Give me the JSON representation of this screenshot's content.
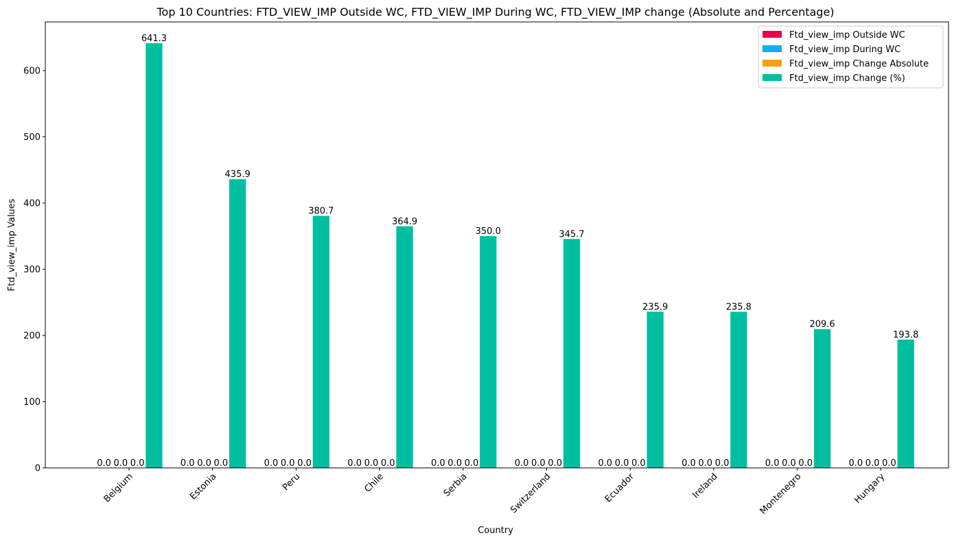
{
  "chart_data": {
    "type": "bar",
    "title": "Top 10 Countries: FTD_VIEW_IMP Outside WC, FTD_VIEW_IMP During WC, FTD_VIEW_IMP change (Absolute and Percentage)",
    "xlabel": "Country",
    "ylabel": "Ftd_view_imp Values",
    "categories": [
      "Belgium",
      "Estonia",
      "Peru",
      "Chile",
      "Serbia",
      "Switzerland",
      "Ecuador",
      "Ireland",
      "Montenegro",
      "Hungary"
    ],
    "series": [
      {
        "name": "Ftd_view_imp Outside WC",
        "color": "#e5004f",
        "values": [
          0.0,
          0.0,
          0.0,
          0.0,
          0.0,
          0.0,
          0.0,
          0.0,
          0.0,
          0.0
        ],
        "labels": [
          "0.0",
          "0.0",
          "0.0",
          "0.0",
          "0.0",
          "0.0",
          "0.0",
          "0.0",
          "0.0",
          "0.0"
        ]
      },
      {
        "name": "Ftd_view_imp During WC",
        "color": "#0fb0f0",
        "values": [
          0.0,
          0.0,
          0.0,
          0.0,
          0.0,
          0.0,
          0.0,
          0.0,
          0.0,
          0.0
        ],
        "labels": [
          "0.0",
          "0.0",
          "0.0",
          "0.0",
          "0.0",
          "0.0",
          "0.0",
          "0.0",
          "0.0",
          "0.0"
        ]
      },
      {
        "name": "Ftd_view_imp Change Absolute",
        "color": "#f8a10c",
        "values": [
          0.0,
          0.0,
          0.0,
          0.0,
          0.0,
          0.0,
          0.0,
          0.0,
          0.0,
          0.0
        ],
        "labels": [
          "0.0",
          "0.0",
          "0.0",
          "0.0",
          "0.0",
          "0.0",
          "0.0",
          "0.0",
          "0.0",
          "0.0"
        ]
      },
      {
        "name": "Ftd_view_imp Change (%)",
        "color": "#00bfa0",
        "values": [
          641.3,
          435.9,
          380.7,
          364.9,
          350.0,
          345.7,
          235.9,
          235.8,
          209.6,
          193.8
        ],
        "labels": [
          "641.3",
          "435.9",
          "380.7",
          "364.9",
          "350.0",
          "345.7",
          "235.9",
          "235.8",
          "209.6",
          "193.8"
        ]
      }
    ],
    "ylim": [
      0,
      673.4
    ],
    "yticks": [
      0,
      100,
      200,
      300,
      400,
      500,
      600
    ],
    "ytick_labels": [
      "0",
      "100",
      "200",
      "300",
      "400",
      "500",
      "600"
    ],
    "grid": false,
    "legend_position": "top-right"
  }
}
